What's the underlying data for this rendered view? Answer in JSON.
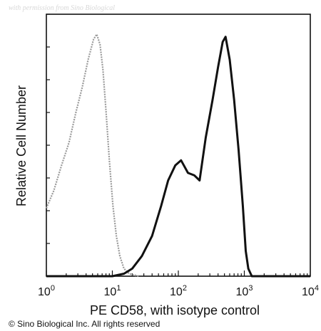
{
  "chart_data": {
    "type": "histogram",
    "title": "",
    "xlabel": "PE CD58, with isotype control",
    "ylabel": "Relative Cell Number",
    "xscale": "log",
    "xlim": [
      1,
      10000
    ],
    "ylim": [
      0,
      1
    ],
    "x_ticks": [
      {
        "value": 1,
        "base": "10",
        "exp": "0"
      },
      {
        "value": 10,
        "base": "10",
        "exp": "1"
      },
      {
        "value": 100,
        "base": "10",
        "exp": "2"
      },
      {
        "value": 1000,
        "base": "10",
        "exp": "3"
      },
      {
        "value": 10000,
        "base": "10",
        "exp": "4"
      }
    ],
    "series": [
      {
        "role": "isotype control",
        "color": "#9a9a9a",
        "style": "dotted",
        "points": [
          [
            1.0,
            0.27
          ],
          [
            1.3,
            0.34
          ],
          [
            1.7,
            0.44
          ],
          [
            2.2,
            0.53
          ],
          [
            2.8,
            0.65
          ],
          [
            3.5,
            0.75
          ],
          [
            4.3,
            0.86
          ],
          [
            5.2,
            0.94
          ],
          [
            5.8,
            0.96
          ],
          [
            6.5,
            0.92
          ],
          [
            7.2,
            0.82
          ],
          [
            8.0,
            0.66
          ],
          [
            9.0,
            0.46
          ],
          [
            10.2,
            0.28
          ],
          [
            11.5,
            0.16
          ],
          [
            13,
            0.08
          ],
          [
            15,
            0.03
          ],
          [
            18,
            0.01
          ],
          [
            25,
            0.0
          ]
        ]
      },
      {
        "role": "PE CD58",
        "color": "#111111",
        "style": "solid",
        "points": [
          [
            1,
            0.0
          ],
          [
            10,
            0.0
          ],
          [
            15,
            0.01
          ],
          [
            20,
            0.03
          ],
          [
            28,
            0.08
          ],
          [
            40,
            0.16
          ],
          [
            55,
            0.28
          ],
          [
            70,
            0.38
          ],
          [
            90,
            0.44
          ],
          [
            110,
            0.46
          ],
          [
            140,
            0.41
          ],
          [
            175,
            0.4
          ],
          [
            210,
            0.38
          ],
          [
            260,
            0.55
          ],
          [
            330,
            0.7
          ],
          [
            400,
            0.83
          ],
          [
            470,
            0.93
          ],
          [
            520,
            0.95
          ],
          [
            600,
            0.86
          ],
          [
            700,
            0.7
          ],
          [
            820,
            0.5
          ],
          [
            950,
            0.28
          ],
          [
            1050,
            0.1
          ],
          [
            1150,
            0.03
          ],
          [
            1300,
            0.0
          ],
          [
            10000,
            0.0
          ]
        ]
      }
    ],
    "grid": false,
    "legend": "none"
  },
  "watermark": "with permission from Sino Biological",
  "copyright": "© Sino Biological Inc. All rights reserved"
}
